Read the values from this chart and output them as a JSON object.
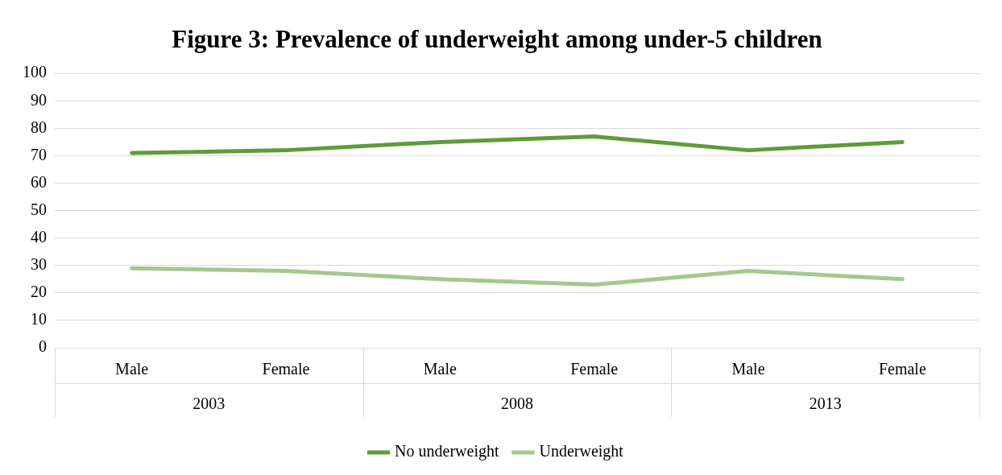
{
  "chart_data": {
    "type": "line",
    "title": "Figure 3: Prevalence of underweight among under-5 children",
    "categories": [
      "Male",
      "Female",
      "Male",
      "Female",
      "Male",
      "Female"
    ],
    "annotations": [
      "2003",
      "2008",
      "2013"
    ],
    "series": [
      {
        "name": "No underweight",
        "color": "#5e9c3a",
        "values": [
          71,
          72,
          75,
          77,
          72,
          75
        ]
      },
      {
        "name": "Underweight",
        "color": "#a3c98c",
        "values": [
          29,
          28,
          25,
          23,
          28,
          25
        ]
      }
    ],
    "ylim": [
      0,
      100
    ],
    "yticks": [
      0,
      10,
      20,
      30,
      40,
      50,
      60,
      70,
      80,
      90,
      100
    ],
    "grid": "y",
    "legend": "bottom",
    "marker": "none",
    "line_style": "solid"
  }
}
